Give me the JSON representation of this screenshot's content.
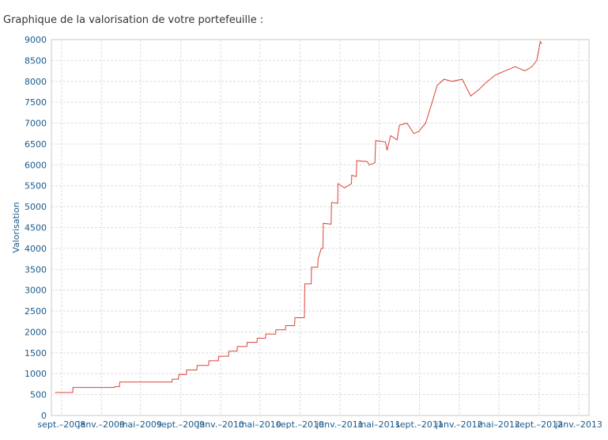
{
  "page": {
    "title": "Graphique de la valorisation de votre portefeuille :"
  },
  "chart_data": {
    "type": "line",
    "title": "",
    "xlabel": "",
    "ylabel": "Valorisation",
    "ylim": [
      0,
      9000
    ],
    "yticks": [
      0,
      500,
      1000,
      1500,
      2000,
      2500,
      3000,
      3500,
      4000,
      4500,
      5000,
      5500,
      6000,
      6500,
      7000,
      7500,
      8000,
      8500,
      9000
    ],
    "xlim": [
      "2008-08-01",
      "2013-02-01"
    ],
    "xticks": [
      {
        "date": "2008-09-01",
        "label": "sept.–2008"
      },
      {
        "date": "2009-01-01",
        "label": "janv.–2009"
      },
      {
        "date": "2009-05-01",
        "label": "mai–2009"
      },
      {
        "date": "2009-09-01",
        "label": "sept.–2009"
      },
      {
        "date": "2010-01-01",
        "label": "janv.–2010"
      },
      {
        "date": "2010-05-01",
        "label": "mai–2010"
      },
      {
        "date": "2010-09-01",
        "label": "sept.–2010"
      },
      {
        "date": "2011-01-01",
        "label": "janv.–2011"
      },
      {
        "date": "2011-05-01",
        "label": "mai–2011"
      },
      {
        "date": "2011-09-01",
        "label": "sept.–2011"
      },
      {
        "date": "2012-01-01",
        "label": "janv.–2012"
      },
      {
        "date": "2012-05-01",
        "label": "mai–2012"
      },
      {
        "date": "2012-09-01",
        "label": "sept.–2012"
      },
      {
        "date": "2013-01-01",
        "label": "janv.–2013"
      }
    ],
    "grid": true,
    "colors": {
      "line": "#d9433b",
      "grid": "#dddddd",
      "axis": "#c8c8c8",
      "text": "#1a5a8a"
    },
    "series": [
      {
        "points": [
          [
            "2008-08-12",
            550
          ],
          [
            "2008-10-05",
            550
          ],
          [
            "2008-10-06",
            670
          ],
          [
            "2009-02-10",
            670
          ],
          [
            "2009-02-11",
            690
          ],
          [
            "2009-02-25",
            690
          ],
          [
            "2009-02-26",
            800
          ],
          [
            "2009-08-05",
            800
          ],
          [
            "2009-08-06",
            870
          ],
          [
            "2009-08-25",
            870
          ],
          [
            "2009-08-26",
            980
          ],
          [
            "2009-09-18",
            980
          ],
          [
            "2009-09-19",
            1090
          ],
          [
            "2009-10-20",
            1090
          ],
          [
            "2009-10-21",
            1200
          ],
          [
            "2009-11-25",
            1200
          ],
          [
            "2009-11-26",
            1310
          ],
          [
            "2009-12-25",
            1310
          ],
          [
            "2009-12-26",
            1420
          ],
          [
            "2010-01-25",
            1420
          ],
          [
            "2010-01-26",
            1540
          ],
          [
            "2010-02-20",
            1540
          ],
          [
            "2010-02-21",
            1650
          ],
          [
            "2010-03-22",
            1650
          ],
          [
            "2010-03-23",
            1750
          ],
          [
            "2010-04-22",
            1750
          ],
          [
            "2010-04-23",
            1850
          ],
          [
            "2010-05-18",
            1850
          ],
          [
            "2010-05-19",
            1950
          ],
          [
            "2010-06-18",
            1950
          ],
          [
            "2010-06-19",
            2050
          ],
          [
            "2010-07-18",
            2050
          ],
          [
            "2010-07-19",
            2150
          ],
          [
            "2010-08-15",
            2150
          ],
          [
            "2010-08-16",
            2340
          ],
          [
            "2010-09-14",
            2340
          ],
          [
            "2010-09-15",
            3150
          ],
          [
            "2010-10-05",
            3150
          ],
          [
            "2010-10-06",
            3550
          ],
          [
            "2010-10-25",
            3550
          ],
          [
            "2010-10-26",
            3750
          ],
          [
            "2010-11-05",
            4000
          ],
          [
            "2010-11-10",
            4000
          ],
          [
            "2010-11-11",
            4600
          ],
          [
            "2010-12-05",
            4580
          ],
          [
            "2010-12-06",
            5100
          ],
          [
            "2010-12-25",
            5080
          ],
          [
            "2010-12-26",
            5550
          ],
          [
            "2011-01-15",
            5450
          ],
          [
            "2011-02-05",
            5550
          ],
          [
            "2011-02-06",
            5750
          ],
          [
            "2011-02-20",
            5720
          ],
          [
            "2011-02-21",
            6100
          ],
          [
            "2011-03-25",
            6080
          ],
          [
            "2011-04-01",
            6000
          ],
          [
            "2011-04-18",
            6050
          ],
          [
            "2011-04-20",
            6580
          ],
          [
            "2011-05-20",
            6550
          ],
          [
            "2011-05-25",
            6350
          ],
          [
            "2011-06-05",
            6700
          ],
          [
            "2011-06-25",
            6600
          ],
          [
            "2011-07-02",
            6950
          ],
          [
            "2011-07-25",
            7000
          ],
          [
            "2011-08-15",
            6750
          ],
          [
            "2011-08-30",
            6800
          ],
          [
            "2011-09-20",
            7000
          ],
          [
            "2011-10-10",
            7500
          ],
          [
            "2011-10-25",
            7900
          ],
          [
            "2011-11-15",
            8050
          ],
          [
            "2011-12-10",
            8000
          ],
          [
            "2012-01-10",
            8050
          ],
          [
            "2012-02-05",
            7650
          ],
          [
            "2012-03-01",
            7800
          ],
          [
            "2012-03-20",
            7950
          ],
          [
            "2012-04-20",
            8150
          ],
          [
            "2012-05-20",
            8250
          ],
          [
            "2012-06-20",
            8350
          ],
          [
            "2012-07-20",
            8250
          ],
          [
            "2012-08-10",
            8350
          ],
          [
            "2012-08-25",
            8500
          ],
          [
            "2012-09-05",
            8950
          ],
          [
            "2012-09-10",
            8900
          ]
        ]
      }
    ]
  }
}
